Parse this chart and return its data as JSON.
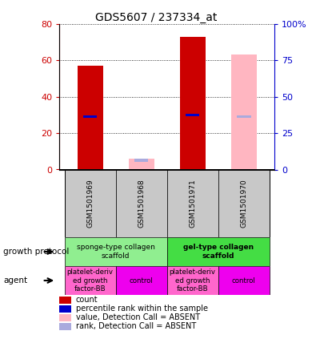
{
  "title": "GDS5607 / 237334_at",
  "samples": [
    "GSM1501969",
    "GSM1501968",
    "GSM1501971",
    "GSM1501970"
  ],
  "count_values": [
    57,
    0,
    73,
    0
  ],
  "rank_values": [
    29,
    0,
    30,
    0
  ],
  "absent_value_values": [
    0,
    6,
    0,
    63
  ],
  "absent_rank_values": [
    0,
    5,
    0,
    29
  ],
  "ylim_left": [
    0,
    80
  ],
  "ylim_right": [
    0,
    100
  ],
  "yticks_left": [
    0,
    20,
    40,
    60,
    80
  ],
  "ytick_labels_left": [
    "0",
    "20",
    "40",
    "60",
    "80"
  ],
  "yticks_right": [
    0,
    25,
    50,
    75,
    100
  ],
  "ytick_labels_right": [
    "0",
    "25",
    "50",
    "75",
    "100%"
  ],
  "bar_width": 0.5,
  "bar_positions": [
    0,
    1,
    2,
    3
  ],
  "color_count": "#CC0000",
  "color_rank": "#0000CC",
  "color_absent_value": "#FFB6C1",
  "color_absent_rank": "#AAAADD",
  "color_sponge": "#90EE90",
  "color_gel": "#44DD44",
  "color_platelet": "#FF66CC",
  "color_control": "#EE00EE",
  "color_sample_bg": "#C8C8C8",
  "growth_protocol_left": "sponge-type collagen\nscaffold",
  "growth_protocol_right": "gel-type collagen\nscaffold",
  "agent": [
    "platelet-deriv\ned growth\nfactor-BB",
    "control",
    "platelet-deriv\ned growth\nfactor-BB",
    "control"
  ],
  "legend_items": [
    {
      "label": "count",
      "color": "#CC0000"
    },
    {
      "label": "percentile rank within the sample",
      "color": "#0000CC"
    },
    {
      "label": "value, Detection Call = ABSENT",
      "color": "#FFB6C1"
    },
    {
      "label": "rank, Detection Call = ABSENT",
      "color": "#AAAADD"
    }
  ]
}
